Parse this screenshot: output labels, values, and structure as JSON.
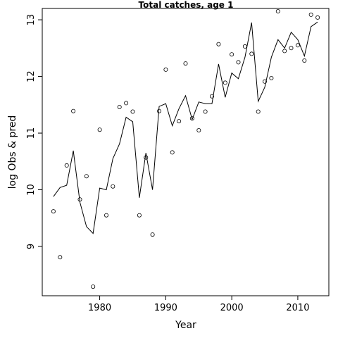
{
  "chart_data": {
    "type": "scatter",
    "title": "Total catches, age 1",
    "xlabel": "Year",
    "ylabel": "log Obs & pred",
    "xlim": [
      1971.3,
      2014.7
    ],
    "ylim": [
      8.13,
      13.2
    ],
    "xticks": [
      1980,
      1990,
      2000,
      2010
    ],
    "yticks": [
      9,
      10,
      11,
      12,
      13
    ],
    "xtick_labels": [
      "1980",
      "1990",
      "2000",
      "2010"
    ],
    "ytick_labels": [
      "9",
      "10",
      "11",
      "12",
      "13"
    ],
    "grid": false,
    "legend": "none",
    "series": [
      {
        "type": "scatter",
        "marker": "open-circle",
        "x": [
          1973,
          1974,
          1975,
          1976,
          1977,
          1978,
          1979,
          1980,
          1981,
          1982,
          1983,
          1984,
          1985,
          1986,
          1987,
          1988,
          1989,
          1990,
          1991,
          1992,
          1993,
          1994,
          1995,
          1996,
          1997,
          1998,
          1999,
          2000,
          2001,
          2002,
          2003,
          2004,
          2005,
          2006,
          2007,
          2008,
          2009,
          2010,
          2011,
          2012,
          2013
        ],
        "y": [
          9.62,
          8.81,
          10.43,
          11.39,
          9.83,
          10.24,
          8.29,
          11.06,
          9.55,
          10.06,
          11.46,
          11.53,
          11.38,
          9.55,
          10.57,
          9.21,
          11.39,
          12.12,
          10.66,
          11.21,
          12.23,
          11.26,
          11.05,
          11.38,
          11.65,
          12.57,
          11.89,
          12.39,
          12.25,
          12.53,
          12.4,
          11.38,
          11.91,
          11.97,
          13.15,
          12.45,
          12.5,
          12.55,
          12.28,
          13.09,
          13.04
        ]
      },
      {
        "type": "line",
        "x": [
          1973,
          1974,
          1975,
          1976,
          1977,
          1978,
          1979,
          1980,
          1981,
          1982,
          1983,
          1984,
          1985,
          1986,
          1987,
          1988,
          1989,
          1990,
          1991,
          1992,
          1993,
          1994,
          1995,
          1996,
          1997,
          1998,
          1999,
          2000,
          2001,
          2002,
          2003,
          2004,
          2005,
          2006,
          2007,
          2008,
          2009,
          2010,
          2011,
          2012,
          2013
        ],
        "y": [
          9.88,
          10.04,
          10.08,
          10.69,
          9.78,
          9.35,
          9.23,
          10.03,
          10.0,
          10.55,
          10.81,
          11.28,
          11.2,
          9.86,
          10.65,
          10.0,
          11.47,
          11.52,
          11.13,
          11.43,
          11.66,
          11.24,
          11.55,
          11.52,
          11.52,
          12.22,
          11.63,
          12.06,
          11.96,
          12.34,
          12.95,
          11.56,
          11.81,
          12.34,
          12.65,
          12.5,
          12.78,
          12.65,
          12.36,
          12.88,
          12.96
        ]
      }
    ]
  }
}
